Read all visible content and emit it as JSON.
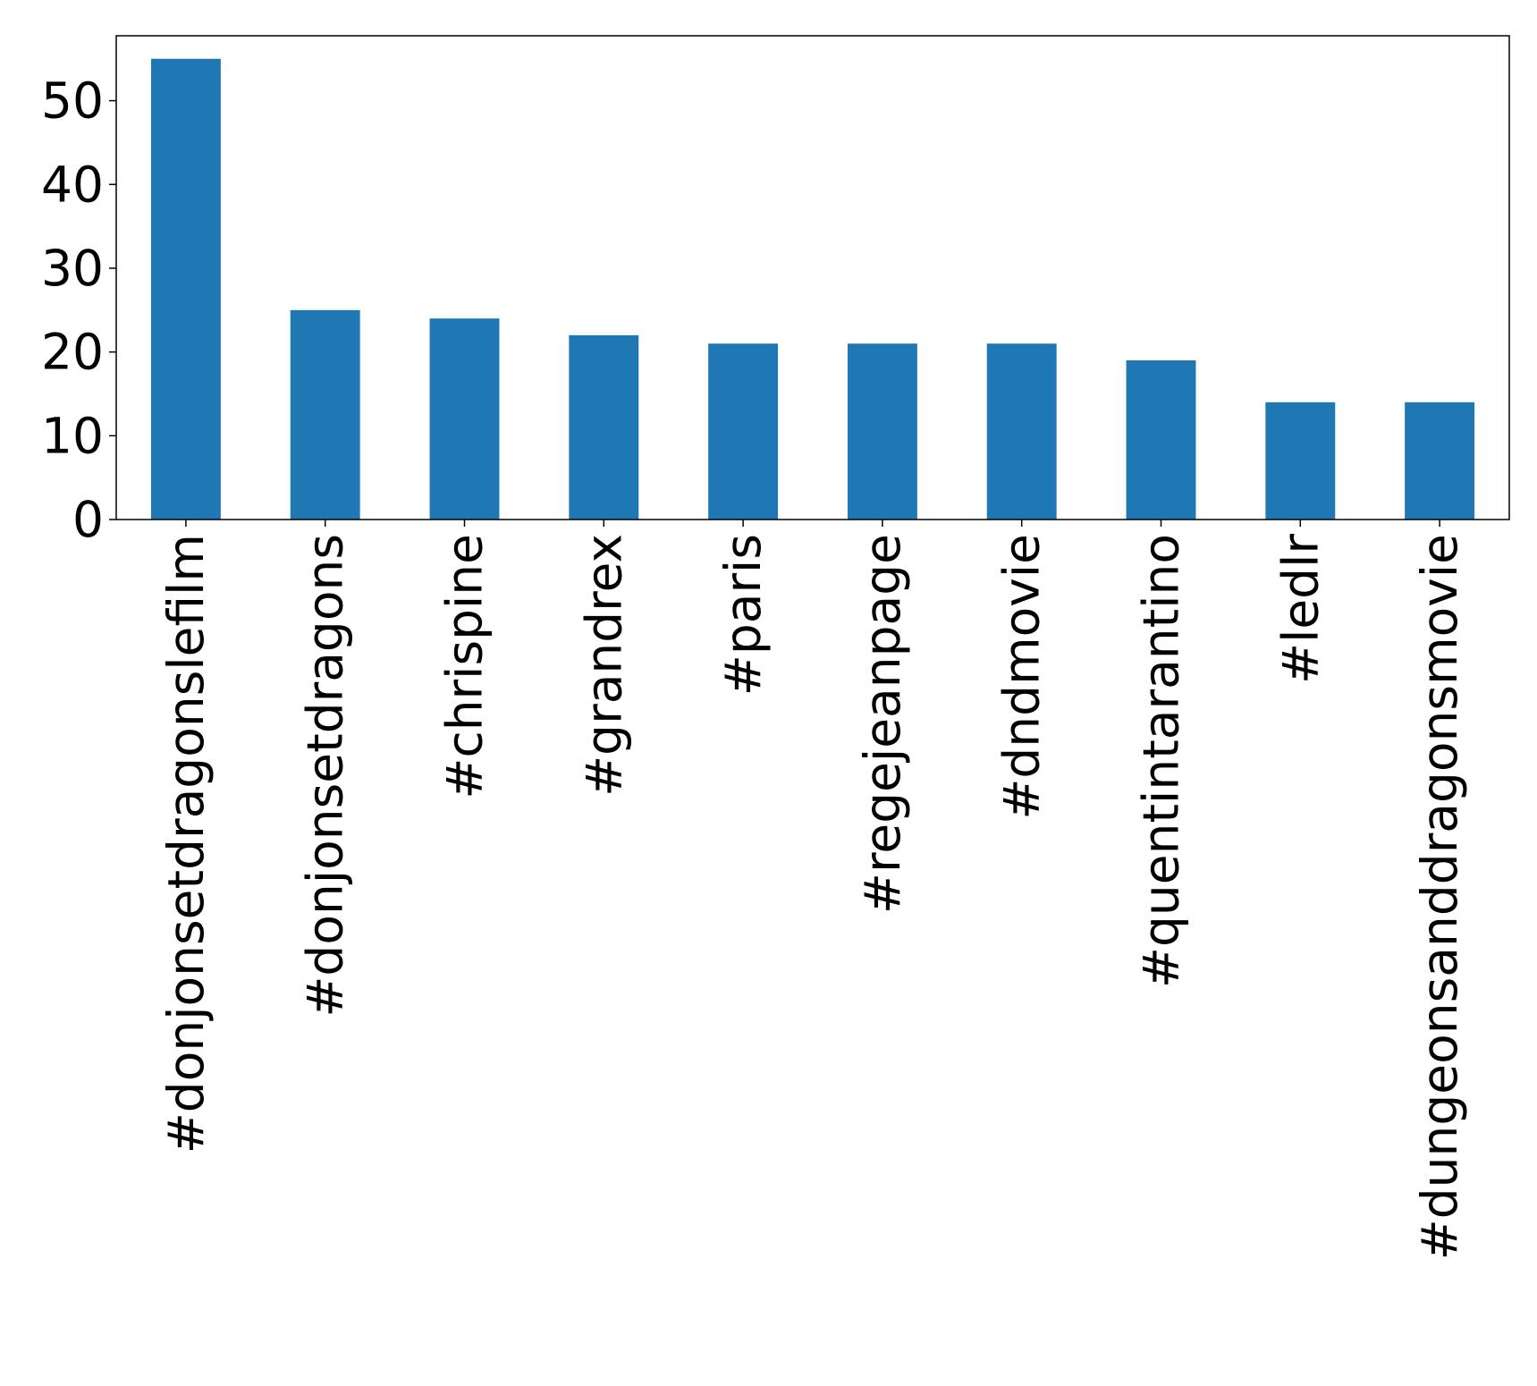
{
  "chart_data": {
    "type": "bar",
    "title": "",
    "xlabel": "",
    "ylabel": "",
    "categories": [
      "#donjonsetdragonslefilm",
      "#donjonsetdragons",
      "#chrispine",
      "#grandrex",
      "#paris",
      "#regejeanpage",
      "#dndmovie",
      "#quentintarantino",
      "#ledlr",
      "#dungeonsanddragonsmovie"
    ],
    "values": [
      55,
      25,
      24,
      22,
      21,
      21,
      21,
      19,
      14,
      14
    ],
    "ylim": [
      0,
      57.75
    ],
    "yticks": [
      0,
      10,
      20,
      30,
      40,
      50
    ],
    "ytick_labels": [
      "0",
      "10",
      "20",
      "30",
      "40",
      "50"
    ],
    "grid": false,
    "legend": "none",
    "bar_color": "#1f77b4"
  }
}
